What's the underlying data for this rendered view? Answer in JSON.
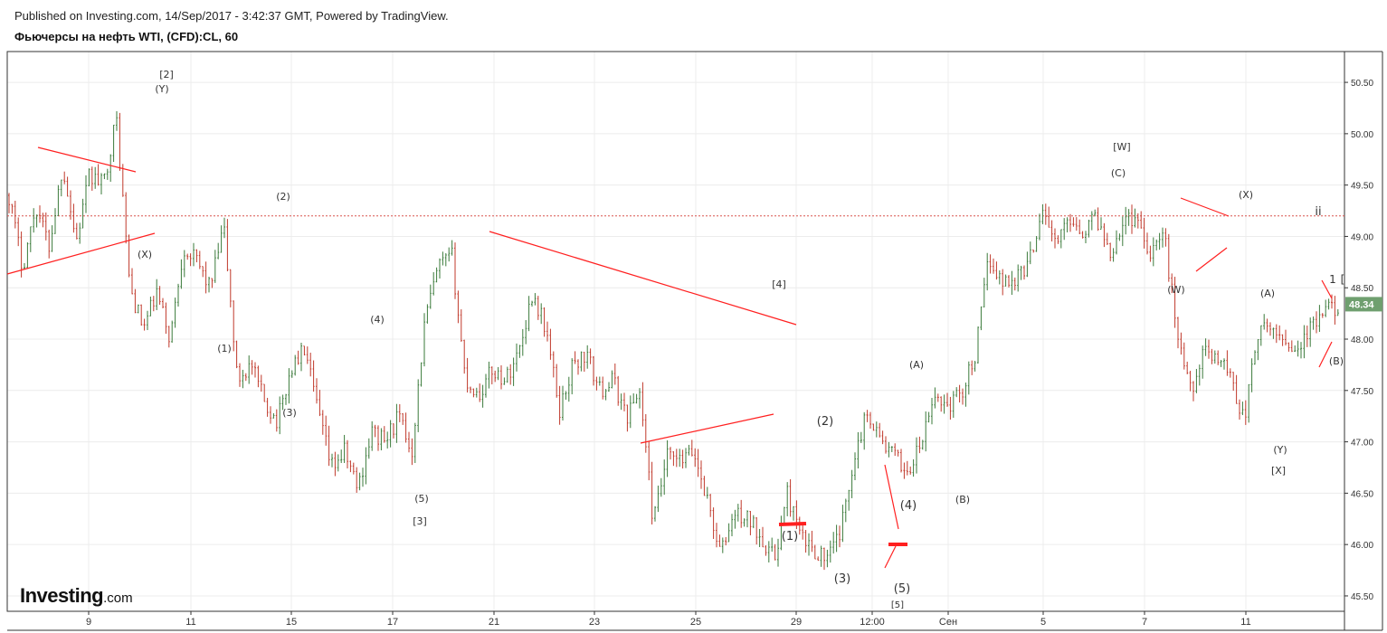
{
  "header": {
    "published": "Published on Investing.com, 14/Sep/2017 - 3:42:37 GMT, Powered by TradingView.",
    "symbol": "Фьючерсы на нефть WTI, (CFD):CL, 60"
  },
  "logo": {
    "main": "Investing",
    "suffix": ".com"
  },
  "colors": {
    "up": "#3a7a3a",
    "down": "#c0392b",
    "annotation": "#ff2020",
    "price_badge": "#6f9f6f",
    "grid": "#ececec"
  },
  "chart_data": {
    "type": "candlestick",
    "interval": "60",
    "ylim": [
      45.35,
      50.8
    ],
    "y_ticks": [
      "45.50",
      "46.00",
      "46.50",
      "47.00",
      "47.50",
      "48.00",
      "48.50",
      "49.00",
      "49.50",
      "50.00",
      "50.50"
    ],
    "x_ticks": [
      "9",
      "11",
      "15",
      "17",
      "21",
      "23",
      "25",
      "29",
      "12:00",
      "Сен",
      "5",
      "7",
      "11"
    ],
    "last_price": "48.34",
    "horizontal_level": 49.2,
    "price_path": [
      [
        "8",
        49.4
      ],
      [
        "8",
        48.7
      ],
      [
        "8",
        49.3
      ],
      [
        "9",
        48.9
      ],
      [
        "9",
        49.7
      ],
      [
        "9",
        48.95
      ],
      [
        "9",
        49.6
      ],
      [
        "10",
        49.5
      ],
      [
        "10",
        50.15
      ],
      [
        "11",
        48.5
      ],
      [
        "11",
        48.1
      ],
      [
        "11",
        48.45
      ],
      [
        "11",
        48.0
      ],
      [
        "12",
        48.9
      ],
      [
        "14",
        48.75
      ],
      [
        "14",
        48.5
      ],
      [
        "14",
        49.1
      ],
      [
        "15",
        47.6
      ],
      [
        "15",
        47.75
      ],
      [
        "15",
        47.4
      ],
      [
        "16",
        47.2
      ],
      [
        "16",
        47.7
      ],
      [
        "16",
        47.9
      ],
      [
        "17",
        47.3
      ],
      [
        "17",
        46.75
      ],
      [
        "17",
        46.9
      ],
      [
        "18",
        46.55
      ],
      [
        "18",
        47.1
      ],
      [
        "18",
        47.0
      ],
      [
        "19",
        47.25
      ],
      [
        "19",
        46.9
      ],
      [
        "21",
        48.2
      ],
      [
        "21",
        48.7
      ],
      [
        "22",
        48.8
      ],
      [
        "22",
        47.6
      ],
      [
        "22",
        47.45
      ],
      [
        "23",
        47.7
      ],
      [
        "23",
        47.6
      ],
      [
        "23",
        47.9
      ],
      [
        "24",
        48.45
      ],
      [
        "24",
        48.1
      ],
      [
        "25",
        47.3
      ],
      [
        "25",
        47.75
      ],
      [
        "25",
        47.85
      ],
      [
        "26",
        47.5
      ],
      [
        "26",
        47.6
      ],
      [
        "26",
        47.25
      ],
      [
        "28",
        47.5
      ],
      [
        "28",
        46.2
      ],
      [
        "28",
        46.85
      ],
      [
        "29",
        46.8
      ],
      [
        "29",
        46.9
      ],
      [
        "29",
        46.45
      ],
      [
        "29",
        45.9
      ],
      [
        "30",
        46.3
      ],
      [
        "30",
        46.25
      ],
      [
        "31",
        46.1
      ],
      [
        "31",
        45.85
      ],
      [
        "31",
        46.5
      ],
      [
        "31",
        46.05
      ],
      [
        "31",
        45.95
      ],
      [
        "31",
        45.85
      ],
      [
        "Сен",
        46.15
      ],
      [
        "Сен",
        46.9
      ],
      [
        "Сен",
        47.3
      ],
      [
        "Сен",
        47.0
      ],
      [
        "Сен",
        46.85
      ],
      [
        "Сен",
        46.7
      ],
      [
        "4",
        47.0
      ],
      [
        "4",
        47.45
      ],
      [
        "5",
        47.35
      ],
      [
        "5",
        47.5
      ],
      [
        "5",
        47.85
      ],
      [
        "5",
        48.8
      ],
      [
        "6",
        48.55
      ],
      [
        "6",
        48.6
      ],
      [
        "6",
        48.75
      ],
      [
        "6",
        49.3
      ],
      [
        "7",
        48.9
      ],
      [
        "7",
        49.2
      ],
      [
        "7",
        49.05
      ],
      [
        "7",
        49.2
      ],
      [
        "8",
        48.85
      ],
      [
        "8",
        49.15
      ],
      [
        "8",
        49.2
      ],
      [
        "8",
        48.85
      ],
      [
        "8",
        49.05
      ],
      [
        "11",
        48.1
      ],
      [
        "11",
        47.5
      ],
      [
        "11",
        47.85
      ],
      [
        "11",
        47.85
      ],
      [
        "11",
        47.65
      ],
      [
        "12",
        47.2
      ],
      [
        "12",
        48.05
      ],
      [
        "12",
        48.1
      ],
      [
        "12",
        48.0
      ],
      [
        "13",
        47.9
      ],
      [
        "13",
        48.1
      ],
      [
        "13",
        48.25
      ],
      [
        "13",
        48.34
      ]
    ],
    "wave_labels": [
      "[2]",
      "(Y)",
      "(X)",
      "(1)",
      "(2)",
      "(3)",
      "(4)",
      "(5)",
      "[3]",
      "[4]",
      "(1)",
      "(2)",
      "(3)",
      "(4)",
      "(5)",
      "[5]",
      "(A)",
      "(B)",
      "[W]",
      "(C)",
      "(X)",
      "(W)",
      "(A)",
      "(Y)",
      "[X]",
      "(B)",
      "ii",
      "1",
      "["
    ]
  }
}
